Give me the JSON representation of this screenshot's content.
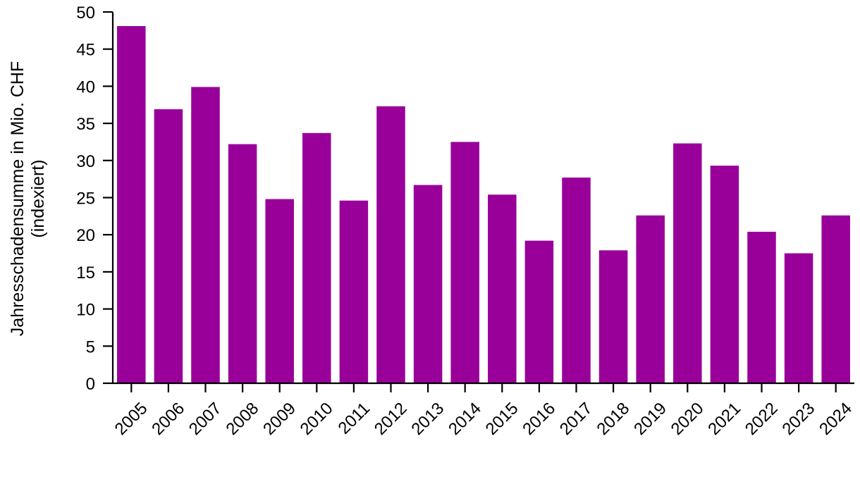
{
  "chart_data": {
    "type": "bar",
    "title": "",
    "xlabel": "",
    "ylabel": [
      "Jahresschadensumme in Mio. CHF",
      "(indexiert)"
    ],
    "categories": [
      "2005",
      "2006",
      "2007",
      "2008",
      "2009",
      "2010",
      "2011",
      "2012",
      "2013",
      "2014",
      "2015",
      "2016",
      "2017",
      "2018",
      "2019",
      "2020",
      "2021",
      "2022",
      "2023",
      "2024"
    ],
    "values": [
      48.1,
      36.9,
      39.9,
      32.2,
      24.8,
      33.7,
      24.6,
      37.3,
      26.7,
      32.5,
      25.4,
      19.2,
      27.7,
      17.9,
      22.6,
      32.3,
      29.3,
      20.4,
      17.5,
      22.6
    ],
    "ylim": [
      0,
      50
    ],
    "yticks": [
      "0",
      "5",
      "10",
      "15",
      "20",
      "25",
      "30",
      "35",
      "40",
      "45",
      "50"
    ],
    "grid": false,
    "legend": "none",
    "bar_color": "#990099"
  }
}
